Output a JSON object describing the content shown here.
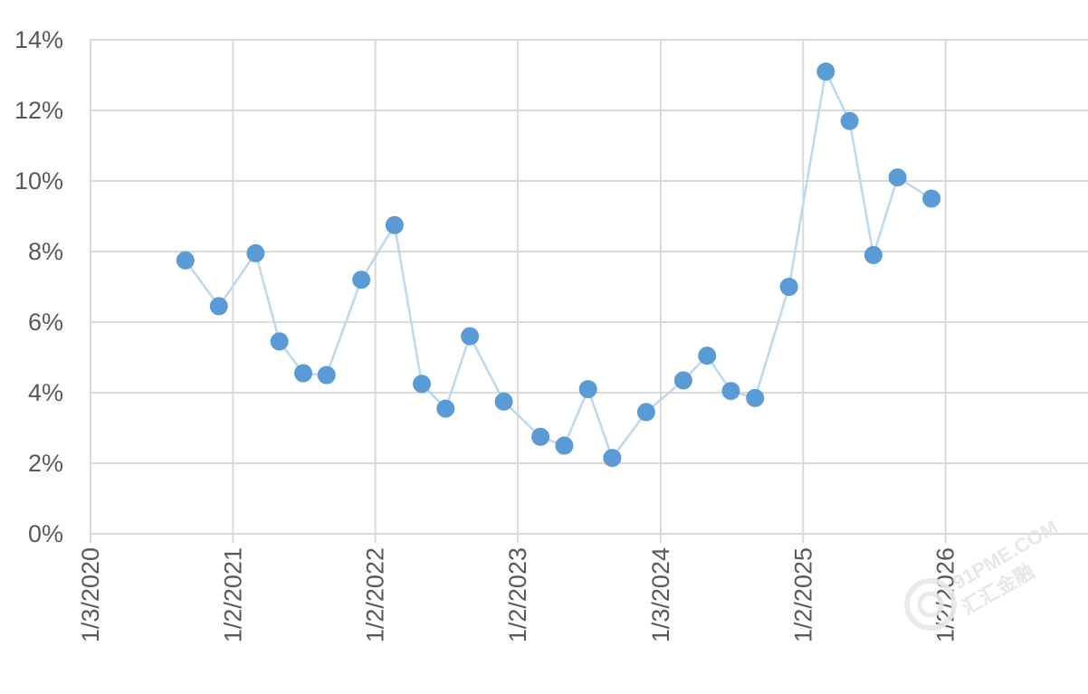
{
  "chart_data": {
    "type": "line",
    "title": "",
    "xlabel": "",
    "ylabel": "",
    "ylim": [
      0,
      14
    ],
    "y_ticks": [
      0,
      2,
      4,
      6,
      8,
      10,
      12,
      14
    ],
    "y_tick_labels": [
      "0%",
      "2%",
      "4%",
      "6%",
      "8%",
      "10%",
      "12%",
      "14%"
    ],
    "x_ticks": [
      "2020-01-03",
      "2021-01-02",
      "2022-01-02",
      "2023-01-02",
      "2024-01-03",
      "2025-01-02",
      "2026-01-02"
    ],
    "x_tick_labels": [
      "1/3/2020",
      "1/2/2021",
      "1/2/2022",
      "1/2/2023",
      "1/3/2024",
      "1/2/2025",
      "1/2/2026"
    ],
    "xlim": [
      "2020-01-03",
      "2027-01-02"
    ],
    "grid": true,
    "legend": "none",
    "series": [
      {
        "color": "#5b9bd5",
        "line_color": "#bdd7ee",
        "x": [
          "2020-09-02",
          "2020-11-27",
          "2021-03-01",
          "2021-05-01",
          "2021-07-01",
          "2021-08-30",
          "2021-11-27",
          "2022-02-20",
          "2022-05-01",
          "2022-07-01",
          "2022-09-01",
          "2022-11-27",
          "2023-03-01",
          "2023-05-01",
          "2023-07-01",
          "2023-09-01",
          "2023-11-27",
          "2024-03-01",
          "2024-05-01",
          "2024-07-01",
          "2024-09-01",
          "2024-11-27",
          "2025-03-01",
          "2025-05-01",
          "2025-07-01",
          "2025-09-01",
          "2025-11-27"
        ],
        "values": [
          7.75,
          6.45,
          7.95,
          5.45,
          4.55,
          4.5,
          7.2,
          8.75,
          4.25,
          3.55,
          5.6,
          3.75,
          2.75,
          2.5,
          4.1,
          2.15,
          3.45,
          4.35,
          5.05,
          4.05,
          3.85,
          7.0,
          13.1,
          11.7,
          7.9,
          10.1,
          9.5
        ]
      }
    ]
  },
  "watermark": {
    "text_line_1": "91PME.COM",
    "text_line_2": "汇汇金融"
  }
}
